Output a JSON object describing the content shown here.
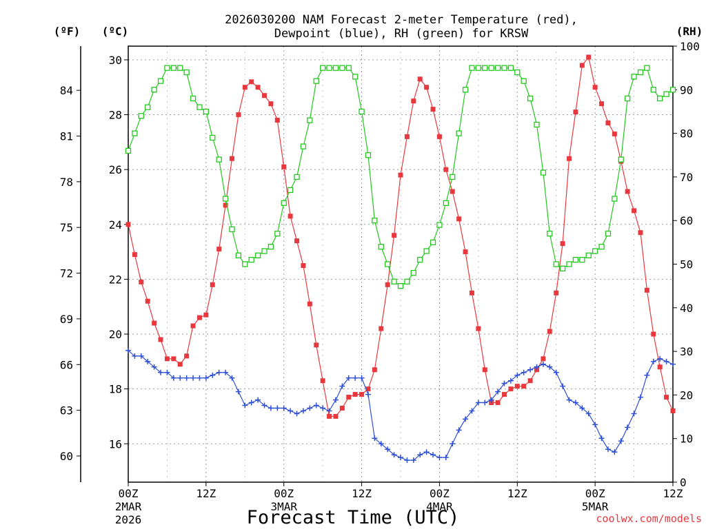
{
  "chart_data": {
    "type": "line",
    "title_line1": "2026030200 NAM Forecast 2-meter Temperature (red),",
    "title_line2": "Dewpoint (blue), RH (green) for KRSW",
    "xlabel": "Forecast Time (UTC)",
    "credit": "coolwx.com/models",
    "unit_left_f": "(ºF)",
    "unit_left_c": "(ºC)",
    "unit_right": "(RH)",
    "x_range_hours": [
      0,
      84
    ],
    "y_left_c_range": [
      14.6,
      30.5
    ],
    "y_right_rh_range": [
      0,
      100
    ],
    "c_ticks": [
      "16",
      "18",
      "20",
      "22",
      "24",
      "26",
      "28",
      "30"
    ],
    "f_ticks": [
      "60",
      "63",
      "66",
      "69",
      "72",
      "75",
      "78",
      "81",
      "84"
    ],
    "rh_ticks": [
      "0",
      "10",
      "20",
      "30",
      "40",
      "50",
      "60",
      "70",
      "80",
      "90",
      "100"
    ],
    "x_ticks": [
      {
        "hour": 0,
        "label": "00Z",
        "day": "2MAR",
        "year": "2026"
      },
      {
        "hour": 12,
        "label": "12Z",
        "day": "",
        "year": ""
      },
      {
        "hour": 24,
        "label": "00Z",
        "day": "3MAR",
        "year": ""
      },
      {
        "hour": 36,
        "label": "12Z",
        "day": "",
        "year": ""
      },
      {
        "hour": 48,
        "label": "00Z",
        "day": "4MAR",
        "year": ""
      },
      {
        "hour": 60,
        "label": "12Z",
        "day": "",
        "year": ""
      },
      {
        "hour": 72,
        "label": "00Z",
        "day": "5MAR",
        "year": ""
      },
      {
        "hour": 84,
        "label": "12Z",
        "day": "",
        "year": ""
      }
    ],
    "series": [
      {
        "name": "Temperature",
        "unit": "C",
        "color": "#e8383d",
        "marker": "filled-square",
        "x": [
          0,
          1,
          2,
          3,
          4,
          5,
          6,
          7,
          8,
          9,
          10,
          11,
          12,
          13,
          14,
          15,
          16,
          17,
          18,
          19,
          20,
          21,
          22,
          23,
          24,
          25,
          26,
          27,
          28,
          29,
          30,
          31,
          32,
          33,
          34,
          35,
          36,
          37,
          38,
          39,
          40,
          41,
          42,
          43,
          44,
          45,
          46,
          47,
          48,
          49,
          50,
          51,
          52,
          53,
          54,
          55,
          56,
          57,
          58,
          59,
          60,
          61,
          62,
          63,
          64,
          65,
          66,
          67,
          68,
          69,
          70,
          71,
          72,
          73,
          74,
          75,
          76,
          77,
          78,
          79,
          80,
          81,
          82,
          83,
          84
        ],
        "values": [
          24.0,
          22.9,
          21.9,
          21.2,
          20.4,
          19.8,
          19.1,
          19.1,
          18.9,
          19.2,
          20.3,
          20.6,
          20.7,
          21.8,
          23.1,
          24.7,
          26.4,
          28.0,
          29.0,
          29.2,
          29.0,
          28.7,
          28.4,
          27.8,
          26.1,
          24.3,
          23.4,
          22.5,
          21.1,
          19.6,
          18.3,
          17.0,
          17.0,
          17.3,
          17.7,
          17.8,
          17.8,
          18.0,
          18.7,
          20.2,
          21.8,
          23.6,
          25.8,
          27.2,
          28.5,
          29.3,
          29.0,
          28.2,
          27.2,
          26.0,
          25.2,
          24.2,
          23.0,
          21.5,
          20.2,
          18.7,
          17.5,
          17.5,
          17.8,
          18.0,
          18.1,
          18.1,
          18.3,
          18.7,
          19.1,
          20.1,
          21.5,
          23.3,
          26.4,
          28.1,
          29.8,
          30.1,
          29.0,
          28.4,
          27.7,
          27.3,
          26.3,
          25.2,
          24.5,
          23.7,
          21.6,
          20.0,
          18.8,
          17.7,
          17.2
        ]
      },
      {
        "name": "Dewpoint",
        "unit": "C",
        "color": "#2e4fd8",
        "marker": "plus",
        "x": [
          0,
          1,
          2,
          3,
          4,
          5,
          6,
          7,
          8,
          9,
          10,
          11,
          12,
          13,
          14,
          15,
          16,
          17,
          18,
          19,
          20,
          21,
          22,
          23,
          24,
          25,
          26,
          27,
          28,
          29,
          30,
          31,
          32,
          33,
          34,
          35,
          36,
          37,
          38,
          39,
          40,
          41,
          42,
          43,
          44,
          45,
          46,
          47,
          48,
          49,
          50,
          51,
          52,
          53,
          54,
          55,
          56,
          57,
          58,
          59,
          60,
          61,
          62,
          63,
          64,
          65,
          66,
          67,
          68,
          69,
          70,
          71,
          72,
          73,
          74,
          75,
          76,
          77,
          78,
          79,
          80,
          81,
          82,
          83,
          84
        ],
        "values": [
          19.4,
          19.2,
          19.2,
          19.0,
          18.8,
          18.6,
          18.6,
          18.4,
          18.4,
          18.4,
          18.4,
          18.4,
          18.4,
          18.5,
          18.6,
          18.6,
          18.4,
          17.9,
          17.4,
          17.5,
          17.6,
          17.4,
          17.3,
          17.3,
          17.3,
          17.2,
          17.1,
          17.2,
          17.3,
          17.4,
          17.3,
          17.2,
          17.6,
          18.1,
          18.4,
          18.4,
          18.4,
          17.8,
          16.2,
          16.0,
          15.8,
          15.6,
          15.5,
          15.4,
          15.4,
          15.6,
          15.7,
          15.6,
          15.5,
          15.5,
          16.0,
          16.5,
          16.9,
          17.2,
          17.5,
          17.5,
          17.6,
          17.9,
          18.2,
          18.3,
          18.5,
          18.6,
          18.7,
          18.8,
          18.9,
          18.8,
          18.6,
          18.1,
          17.6,
          17.5,
          17.3,
          17.1,
          16.7,
          16.2,
          15.8,
          15.7,
          16.1,
          16.6,
          17.1,
          17.7,
          18.5,
          19.0,
          19.1,
          19.0,
          18.9
        ]
      },
      {
        "name": "RH",
        "unit": "%",
        "color": "#22c81e",
        "marker": "open-square",
        "x": [
          0,
          1,
          2,
          3,
          4,
          5,
          6,
          7,
          8,
          9,
          10,
          11,
          12,
          13,
          14,
          15,
          16,
          17,
          18,
          19,
          20,
          21,
          22,
          23,
          24,
          25,
          26,
          27,
          28,
          29,
          30,
          31,
          32,
          33,
          34,
          35,
          36,
          37,
          38,
          39,
          40,
          41,
          42,
          43,
          44,
          45,
          46,
          47,
          48,
          49,
          50,
          51,
          52,
          53,
          54,
          55,
          56,
          57,
          58,
          59,
          60,
          61,
          62,
          63,
          64,
          65,
          66,
          67,
          68,
          69,
          70,
          71,
          72,
          73,
          74,
          75,
          76,
          77,
          78,
          79,
          80,
          81,
          82,
          83,
          84
        ],
        "values": [
          76,
          80,
          84,
          86,
          90,
          92,
          95,
          95,
          95,
          94,
          88,
          86,
          85,
          79,
          74,
          65,
          58,
          52,
          50,
          51,
          52,
          53,
          54,
          57,
          64,
          67,
          70,
          77,
          83,
          92,
          95,
          95,
          95,
          95,
          95,
          93,
          85,
          75,
          60,
          54,
          50,
          46,
          45,
          46,
          48,
          51,
          53,
          55,
          59,
          64,
          70,
          80,
          90,
          95,
          95,
          95,
          95,
          95,
          95,
          95,
          94,
          92,
          88,
          82,
          71,
          57,
          50,
          49,
          50,
          51,
          51,
          52,
          53,
          54,
          57,
          65,
          74,
          88,
          93,
          94,
          95,
          90,
          88,
          89,
          90
        ]
      }
    ]
  }
}
